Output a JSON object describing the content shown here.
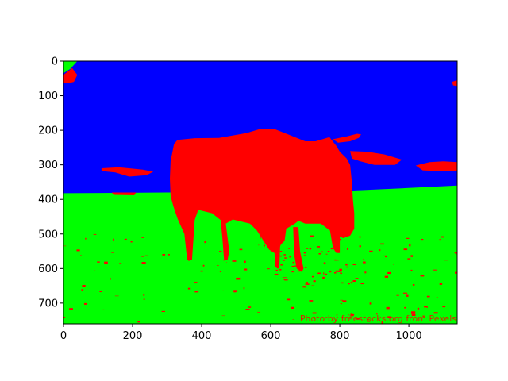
{
  "chart_data": {
    "type": "heatmap",
    "title": "",
    "xlabel": "",
    "ylabel": "",
    "xlim": [
      0,
      1140
    ],
    "ylim": [
      760,
      0
    ],
    "grid": false,
    "x_ticks": [
      0,
      200,
      400,
      600,
      800,
      1000
    ],
    "y_ticks": [
      0,
      100,
      200,
      300,
      400,
      500,
      600,
      700
    ],
    "segments": [
      {
        "label": "sky",
        "color": "#0000ff"
      },
      {
        "label": "grass",
        "color": "#00ff00"
      },
      {
        "label": "bull",
        "color": "#ff0000"
      }
    ],
    "horizon": [
      [
        0,
        382
      ],
      [
        300,
        380
      ],
      [
        600,
        380
      ],
      [
        800,
        376
      ],
      [
        1000,
        367
      ],
      [
        1140,
        360
      ]
    ],
    "bull_outline": [
      [
        320,
        240
      ],
      [
        330,
        228
      ],
      [
        380,
        223
      ],
      [
        450,
        222
      ],
      [
        530,
        208
      ],
      [
        570,
        196
      ],
      [
        610,
        196
      ],
      [
        650,
        212
      ],
      [
        700,
        232
      ],
      [
        730,
        232
      ],
      [
        770,
        220
      ],
      [
        790,
        245
      ],
      [
        800,
        262
      ],
      [
        820,
        282
      ],
      [
        830,
        300
      ],
      [
        835,
        350
      ],
      [
        838,
        400
      ],
      [
        842,
        440
      ],
      [
        842,
        485
      ],
      [
        830,
        505
      ],
      [
        810,
        512
      ],
      [
        785,
        500
      ],
      [
        745,
        470
      ],
      [
        700,
        470
      ],
      [
        680,
        462
      ],
      [
        670,
        470
      ],
      [
        645,
        485
      ],
      [
        640,
        520
      ],
      [
        630,
        530
      ],
      [
        620,
        550
      ],
      [
        610,
        555
      ],
      [
        595,
        545
      ],
      [
        560,
        490
      ],
      [
        540,
        470
      ],
      [
        490,
        458
      ],
      [
        470,
        470
      ],
      [
        480,
        550
      ],
      [
        475,
        575
      ],
      [
        465,
        575
      ],
      [
        460,
        510
      ],
      [
        455,
        460
      ],
      [
        430,
        440
      ],
      [
        390,
        430
      ],
      [
        380,
        460
      ],
      [
        372,
        575
      ],
      [
        358,
        575
      ],
      [
        350,
        500
      ],
      [
        330,
        455
      ],
      [
        318,
        420
      ],
      [
        310,
        390
      ],
      [
        308,
        340
      ],
      [
        310,
        290
      ]
    ],
    "bull_horn": [
      [
        780,
        226
      ],
      [
        820,
        218
      ],
      [
        850,
        210
      ],
      [
        862,
        212
      ],
      [
        855,
        222
      ],
      [
        830,
        232
      ],
      [
        795,
        236
      ]
    ],
    "bull_legs": [
      [
        [
          600,
          460
        ],
        [
          610,
          520
        ],
        [
          612,
          590
        ],
        [
          618,
          600
        ],
        [
          625,
          600
        ],
        [
          627,
          540
        ],
        [
          630,
          470
        ]
      ],
      [
        [
          665,
          480
        ],
        [
          668,
          560
        ],
        [
          675,
          600
        ],
        [
          690,
          610
        ],
        [
          695,
          600
        ],
        [
          685,
          550
        ],
        [
          680,
          480
        ]
      ],
      [
        [
          770,
          480
        ],
        [
          780,
          540
        ],
        [
          790,
          555
        ],
        [
          800,
          555
        ],
        [
          800,
          500
        ]
      ]
    ],
    "red_patches": [
      [
        [
          110,
          310
        ],
        [
          160,
          307
        ],
        [
          230,
          314
        ],
        [
          260,
          320
        ],
        [
          240,
          330
        ],
        [
          190,
          334
        ],
        [
          150,
          322
        ],
        [
          110,
          318
        ]
      ],
      [
        [
          140,
          380
        ],
        [
          210,
          380
        ],
        [
          205,
          388
        ],
        [
          145,
          387
        ]
      ],
      [
        [
          1020,
          302
        ],
        [
          1060,
          292
        ],
        [
          1100,
          290
        ],
        [
          1140,
          292
        ],
        [
          1140,
          318
        ],
        [
          1080,
          318
        ],
        [
          1040,
          316
        ]
      ],
      [
        [
          830,
          260
        ],
        [
          880,
          262
        ],
        [
          930,
          270
        ],
        [
          980,
          285
        ],
        [
          960,
          300
        ],
        [
          900,
          300
        ],
        [
          860,
          290
        ],
        [
          835,
          282
        ]
      ],
      [
        [
          0,
          40
        ],
        [
          25,
          20
        ],
        [
          40,
          40
        ],
        [
          30,
          60
        ],
        [
          10,
          65
        ],
        [
          0,
          62
        ]
      ],
      [
        [
          1125,
          60
        ],
        [
          1140,
          55
        ],
        [
          1140,
          72
        ],
        [
          1128,
          70
        ]
      ]
    ],
    "green_patches": [
      [
        [
          0,
          0
        ],
        [
          40,
          0
        ],
        [
          20,
          22
        ],
        [
          0,
          35
        ]
      ]
    ],
    "watermark": "Photo by freestocks.org from Pexels"
  }
}
